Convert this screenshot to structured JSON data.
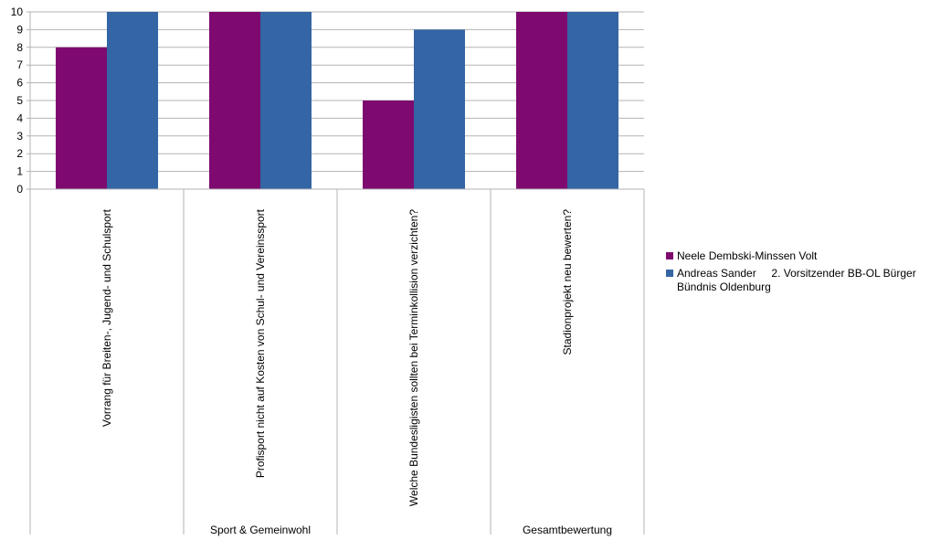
{
  "chart_data": {
    "type": "bar",
    "categories": [
      "Vorrang für Breiten-, Jugend- und Schulsport",
      "Profisport nicht auf Kosten von Schul- und Vereinssport",
      "Welche Bundesligisten sollten bei Terminkollision verzichten?",
      "Stadionprojekt neu bewerten?"
    ],
    "groups": [
      {
        "label": "Sport & Gemeinwohl",
        "span": 3
      },
      {
        "label": "Gesamtbewertung",
        "span": 1
      }
    ],
    "series": [
      {
        "name": "Neele Dembski-Minssen Volt",
        "color": "#7e0a70",
        "values": [
          8,
          10,
          5,
          10
        ]
      },
      {
        "name": "Andreas Sander     2. Vorsitzender BB-OL Bürger Bündnis Oldenburg",
        "color": "#3465a4",
        "values": [
          10,
          10,
          9,
          10
        ]
      }
    ],
    "yticks": [
      "0",
      "1",
      "2",
      "3",
      "4",
      "5",
      "6",
      "7",
      "8",
      "9",
      "10"
    ],
    "ylim": [
      0,
      10
    ],
    "grid": true,
    "legend": "right",
    "title": "",
    "xlabel": "",
    "ylabel": ""
  }
}
